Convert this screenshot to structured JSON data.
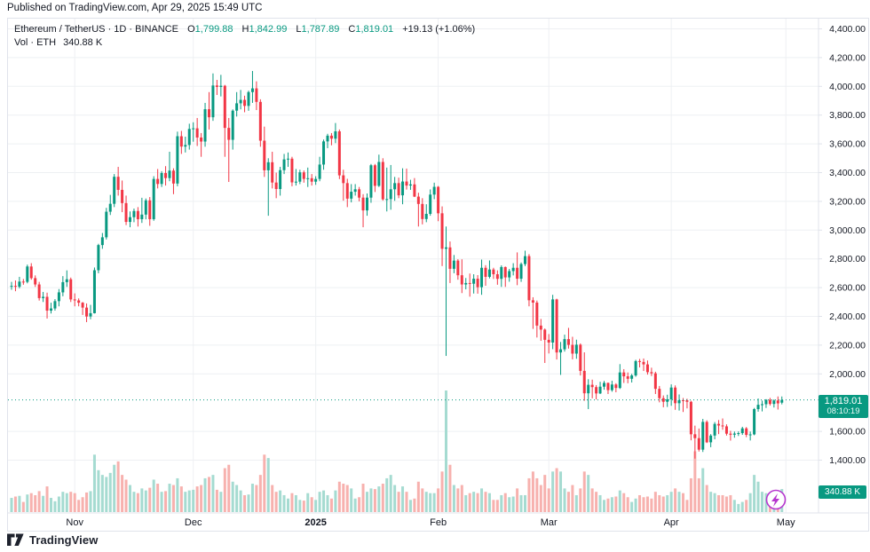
{
  "published_line": "Published on TradingView.com, Apr 29, 2025 15:49 UTC",
  "legend": {
    "series": "Ethereum / TetherUS · 1D · BINANCE",
    "ohlc": [
      {
        "k": "O",
        "v": "1,799.88"
      },
      {
        "k": "H",
        "v": "1,842.99"
      },
      {
        "k": "L",
        "v": "1,787.89"
      },
      {
        "k": "C",
        "v": "1,819.01"
      }
    ],
    "change": "+19.13 (+1.06%)",
    "vol_label": "Vol · ETH",
    "vol_value": "340.88 K"
  },
  "price_axis": {
    "ticks": [
      "4,400.00",
      "4,200.00",
      "4,000.00",
      "3,800.00",
      "3,600.00",
      "3,400.00",
      "3,200.00",
      "3,000.00",
      "2,800.00",
      "2,600.00",
      "2,400.00",
      "2,200.00",
      "2,000.00",
      "1,600.00",
      "1,400.00"
    ],
    "price_label": {
      "price": "1,819.01",
      "countdown": "08:10:19"
    },
    "volume_label": "340.88 K"
  },
  "time_axis": {
    "labels": [
      {
        "label": "Nov",
        "index": 16,
        "bold": false
      },
      {
        "label": "Dec",
        "index": 46,
        "bold": false
      },
      {
        "label": "2025",
        "index": 77,
        "bold": true
      },
      {
        "label": "Feb",
        "index": 108,
        "bold": false
      },
      {
        "label": "Mar",
        "index": 136,
        "bold": false
      },
      {
        "label": "Apr",
        "index": 167,
        "bold": false
      },
      {
        "label": "May",
        "index": 196,
        "bold": false
      }
    ]
  },
  "footer": {
    "brand": "TradingView"
  },
  "colors": {
    "up": "#089981",
    "down": "#f23645",
    "vol_up": "#a5dbd1",
    "vol_down": "#f7b1ae",
    "badge": "#089981",
    "boost": "#b636ce",
    "text": "#131722",
    "grid": "#eef0f3",
    "border": "#e0e3eb"
  },
  "chart_data": {
    "type": "candlestick",
    "title": "Ethereum / TetherUS",
    "exchange": "BINANCE",
    "interval": "1D",
    "volume_unit": "K ETH",
    "start_date": "2024-10-16",
    "end_date": "2025-04-29",
    "ylim": [
      1330,
      4470
    ],
    "grid": true,
    "last_price": 1819.01,
    "last_change": "+19.13 (+1.06%)",
    "last_volume_k": 340.88,
    "columns": [
      "open",
      "high",
      "low",
      "close",
      "volume_k"
    ],
    "ohlcv": [
      [
        2608,
        2640,
        2585,
        2612,
        210
      ],
      [
        2612,
        2650,
        2575,
        2606,
        230
      ],
      [
        2606,
        2675,
        2595,
        2642,
        240
      ],
      [
        2642,
        2660,
        2620,
        2640,
        150
      ],
      [
        2640,
        2760,
        2630,
        2747,
        260
      ],
      [
        2747,
        2770,
        2655,
        2666,
        280
      ],
      [
        2666,
        2685,
        2605,
        2622,
        250
      ],
      [
        2622,
        2640,
        2510,
        2527,
        310
      ],
      [
        2527,
        2570,
        2500,
        2536,
        240
      ],
      [
        2536,
        2565,
        2385,
        2440,
        380
      ],
      [
        2440,
        2495,
        2420,
        2455,
        210
      ],
      [
        2455,
        2520,
        2440,
        2506,
        160
      ],
      [
        2506,
        2590,
        2470,
        2567,
        230
      ],
      [
        2567,
        2680,
        2540,
        2638,
        300
      ],
      [
        2638,
        2720,
        2605,
        2658,
        280
      ],
      [
        2658,
        2670,
        2500,
        2518,
        300
      ],
      [
        2518,
        2560,
        2470,
        2511,
        280
      ],
      [
        2511,
        2525,
        2470,
        2495,
        180
      ],
      [
        2495,
        2500,
        2410,
        2461,
        220
      ],
      [
        2461,
        2490,
        2360,
        2399,
        290
      ],
      [
        2399,
        2480,
        2380,
        2422,
        310
      ],
      [
        2422,
        2740,
        2420,
        2721,
        850
      ],
      [
        2721,
        2905,
        2700,
        2896,
        620
      ],
      [
        2896,
        2980,
        2870,
        2950,
        550
      ],
      [
        2950,
        3155,
        2935,
        3128,
        520
      ],
      [
        3128,
        3245,
        3105,
        3183,
        580
      ],
      [
        3183,
        3390,
        3160,
        3371,
        700
      ],
      [
        3371,
        3440,
        3240,
        3280,
        750
      ],
      [
        3280,
        3345,
        3125,
        3188,
        550
      ],
      [
        3188,
        3240,
        3035,
        3057,
        480
      ],
      [
        3057,
        3130,
        3020,
        3090,
        400
      ],
      [
        3090,
        3150,
        3055,
        3133,
        300
      ],
      [
        3133,
        3160,
        3025,
        3076,
        280
      ],
      [
        3076,
        3225,
        3050,
        3108,
        350
      ],
      [
        3108,
        3220,
        3075,
        3207,
        320
      ],
      [
        3207,
        3230,
        3030,
        3076,
        360
      ],
      [
        3076,
        3375,
        3065,
        3356,
        480
      ],
      [
        3356,
        3425,
        3290,
        3321,
        420
      ],
      [
        3321,
        3410,
        3300,
        3397,
        300
      ],
      [
        3397,
        3445,
        3310,
        3362,
        310
      ],
      [
        3362,
        3545,
        3340,
        3414,
        420
      ],
      [
        3414,
        3430,
        3250,
        3324,
        400
      ],
      [
        3324,
        3685,
        3305,
        3653,
        500
      ],
      [
        3653,
        3690,
        3530,
        3581,
        380
      ],
      [
        3581,
        3650,
        3540,
        3592,
        300
      ],
      [
        3592,
        3740,
        3560,
        3704,
        320
      ],
      [
        3704,
        3750,
        3615,
        3708,
        330
      ],
      [
        3708,
        3780,
        3585,
        3644,
        380
      ],
      [
        3644,
        3675,
        3510,
        3616,
        400
      ],
      [
        3616,
        3885,
        3580,
        3841,
        500
      ],
      [
        3841,
        3960,
        3700,
        3785,
        520
      ],
      [
        3785,
        4090,
        3760,
        4006,
        550
      ],
      [
        4006,
        4045,
        3940,
        3996,
        330
      ],
      [
        3996,
        4080,
        3930,
        4004,
        300
      ],
      [
        4004,
        4010,
        3510,
        3711,
        650
      ],
      [
        3711,
        3780,
        3335,
        3628,
        700
      ],
      [
        3628,
        3840,
        3560,
        3831,
        450
      ],
      [
        3831,
        3960,
        3790,
        3882,
        400
      ],
      [
        3882,
        3975,
        3840,
        3906,
        320
      ],
      [
        3906,
        3935,
        3820,
        3864,
        250
      ],
      [
        3864,
        3970,
        3830,
        3960,
        260
      ],
      [
        3960,
        4107,
        3885,
        3986,
        420
      ],
      [
        3986,
        4035,
        3835,
        3892,
        400
      ],
      [
        3892,
        3910,
        3580,
        3622,
        550
      ],
      [
        3622,
        3720,
        3370,
        3416,
        850
      ],
      [
        3416,
        3500,
        3100,
        3472,
        800
      ],
      [
        3472,
        3545,
        3290,
        3331,
        400
      ],
      [
        3331,
        3400,
        3222,
        3286,
        300
      ],
      [
        3286,
        3440,
        3240,
        3417,
        320
      ],
      [
        3417,
        3530,
        3390,
        3492,
        250
      ],
      [
        3492,
        3540,
        3440,
        3497,
        200
      ],
      [
        3497,
        3510,
        3305,
        3332,
        280
      ],
      [
        3332,
        3425,
        3310,
        3337,
        250
      ],
      [
        3337,
        3420,
        3320,
        3402,
        180
      ],
      [
        3402,
        3415,
        3330,
        3356,
        170
      ],
      [
        3356,
        3435,
        3300,
        3361,
        280
      ],
      [
        3361,
        3390,
        3310,
        3337,
        220
      ],
      [
        3337,
        3375,
        3315,
        3356,
        180
      ],
      [
        3356,
        3510,
        3340,
        3456,
        300
      ],
      [
        3456,
        3630,
        3420,
        3617,
        320
      ],
      [
        3617,
        3670,
        3570,
        3657,
        250
      ],
      [
        3657,
        3675,
        3590,
        3636,
        200
      ],
      [
        3636,
        3745,
        3605,
        3687,
        320
      ],
      [
        3687,
        3700,
        3355,
        3381,
        450
      ],
      [
        3381,
        3420,
        3205,
        3327,
        420
      ],
      [
        3327,
        3357,
        3160,
        3219,
        400
      ],
      [
        3219,
        3320,
        3193,
        3267,
        350
      ],
      [
        3267,
        3320,
        3240,
        3284,
        200
      ],
      [
        3284,
        3300,
        3200,
        3226,
        220
      ],
      [
        3226,
        3250,
        3020,
        3137,
        420
      ],
      [
        3137,
        3255,
        3100,
        3226,
        300
      ],
      [
        3226,
        3460,
        3190,
        3451,
        350
      ],
      [
        3451,
        3460,
        3265,
        3308,
        340
      ],
      [
        3308,
        3525,
        3300,
        3474,
        380
      ],
      [
        3474,
        3500,
        3205,
        3214,
        420
      ],
      [
        3214,
        3435,
        3130,
        3216,
        500
      ],
      [
        3216,
        3453,
        3142,
        3284,
        550
      ],
      [
        3284,
        3370,
        3204,
        3327,
        400
      ],
      [
        3327,
        3365,
        3222,
        3242,
        300
      ],
      [
        3242,
        3430,
        3180,
        3338,
        380
      ],
      [
        3338,
        3428,
        3282,
        3310,
        300
      ],
      [
        3310,
        3350,
        3280,
        3318,
        180
      ],
      [
        3318,
        3362,
        3230,
        3233,
        200
      ],
      [
        3233,
        3260,
        3025,
        3182,
        450
      ],
      [
        3182,
        3222,
        3040,
        3077,
        350
      ],
      [
        3077,
        3180,
        3055,
        3113,
        300
      ],
      [
        3113,
        3283,
        3100,
        3247,
        280
      ],
      [
        3247,
        3330,
        3215,
        3301,
        280
      ],
      [
        3301,
        3307,
        3062,
        3117,
        350
      ],
      [
        3117,
        3165,
        2750,
        2870,
        600
      ],
      [
        2870,
        3025,
        2125,
        2880,
        1800
      ],
      [
        2880,
        2921,
        2632,
        2731,
        700
      ],
      [
        2731,
        2827,
        2700,
        2788,
        400
      ],
      [
        2788,
        2798,
        2655,
        2686,
        350
      ],
      [
        2686,
        2797,
        2562,
        2622,
        400
      ],
      [
        2622,
        2667,
        2588,
        2632,
        250
      ],
      [
        2632,
        2698,
        2537,
        2627,
        280
      ],
      [
        2627,
        2693,
        2559,
        2662,
        300
      ],
      [
        2662,
        2687,
        2558,
        2603,
        280
      ],
      [
        2603,
        2795,
        2550,
        2738,
        350
      ],
      [
        2738,
        2756,
        2613,
        2675,
        300
      ],
      [
        2675,
        2789,
        2664,
        2726,
        280
      ],
      [
        2726,
        2738,
        2660,
        2693,
        180
      ],
      [
        2693,
        2720,
        2620,
        2661,
        180
      ],
      [
        2661,
        2755,
        2605,
        2743,
        250
      ],
      [
        2743,
        2747,
        2605,
        2671,
        280
      ],
      [
        2671,
        2730,
        2641,
        2715,
        220
      ],
      [
        2715,
        2770,
        2685,
        2738,
        230
      ],
      [
        2738,
        2845,
        2617,
        2662,
        350
      ],
      [
        2662,
        2775,
        2640,
        2764,
        250
      ],
      [
        2764,
        2857,
        2750,
        2819,
        250
      ],
      [
        2819,
        2833,
        2470,
        2512,
        500
      ],
      [
        2512,
        2533,
        2313,
        2496,
        600
      ],
      [
        2496,
        2510,
        2253,
        2336,
        500
      ],
      [
        2336,
        2382,
        2230,
        2308,
        400
      ],
      [
        2308,
        2316,
        2076,
        2237,
        550
      ],
      [
        2237,
        2277,
        2142,
        2218,
        350
      ],
      [
        2218,
        2550,
        2172,
        2518,
        600
      ],
      [
        2518,
        2523,
        2100,
        2149,
        650
      ],
      [
        2149,
        2222,
        1993,
        2171,
        600
      ],
      [
        2171,
        2273,
        2155,
        2242,
        350
      ],
      [
        2242,
        2320,
        2176,
        2202,
        300
      ],
      [
        2202,
        2258,
        2101,
        2141,
        400
      ],
      [
        2141,
        2238,
        2105,
        2203,
        250
      ],
      [
        2203,
        2212,
        1989,
        2021,
        350
      ],
      [
        2021,
        2150,
        1813,
        1865,
        600
      ],
      [
        1865,
        1963,
        1755,
        1924,
        550
      ],
      [
        1924,
        1960,
        1830,
        1908,
        350
      ],
      [
        1908,
        1922,
        1822,
        1864,
        300
      ],
      [
        1864,
        1945,
        1860,
        1911,
        250
      ],
      [
        1911,
        1951,
        1890,
        1937,
        180
      ],
      [
        1937,
        1940,
        1860,
        1887,
        200
      ],
      [
        1887,
        1952,
        1876,
        1926,
        220
      ],
      [
        1926,
        1935,
        1872,
        1902,
        230
      ],
      [
        1902,
        2068,
        1895,
        2010,
        320
      ],
      [
        2010,
        2033,
        1937,
        1983,
        280
      ],
      [
        1983,
        2010,
        1935,
        1966,
        220
      ],
      [
        1966,
        2000,
        1940,
        1989,
        150
      ],
      [
        1989,
        2098,
        1980,
        2089,
        200
      ],
      [
        2089,
        2104,
        2045,
        2083,
        250
      ],
      [
        2083,
        2107,
        2020,
        2066,
        220
      ],
      [
        2066,
        2093,
        1995,
        2012,
        230
      ],
      [
        2012,
        2043,
        1985,
        2004,
        200
      ],
      [
        2004,
        2015,
        1860,
        1896,
        300
      ],
      [
        1896,
        1916,
        1802,
        1831,
        250
      ],
      [
        1831,
        1850,
        1768,
        1806,
        230
      ],
      [
        1806,
        1855,
        1770,
        1823,
        250
      ],
      [
        1823,
        1927,
        1778,
        1905,
        300
      ],
      [
        1905,
        1920,
        1750,
        1796,
        350
      ],
      [
        1796,
        1857,
        1745,
        1817,
        300
      ],
      [
        1817,
        1832,
        1735,
        1816,
        280
      ],
      [
        1816,
        1827,
        1760,
        1806,
        180
      ],
      [
        1806,
        1813,
        1538,
        1580,
        500
      ],
      [
        1580,
        1640,
        1411,
        1553,
        900
      ],
      [
        1553,
        1620,
        1460,
        1473,
        500
      ],
      [
        1473,
        1687,
        1457,
        1666,
        650
      ],
      [
        1666,
        1677,
        1519,
        1524,
        400
      ],
      [
        1524,
        1581,
        1490,
        1571,
        300
      ],
      [
        1571,
        1665,
        1545,
        1652,
        280
      ],
      [
        1652,
        1679,
        1581,
        1641,
        250
      ],
      [
        1641,
        1690,
        1611,
        1635,
        250
      ],
      [
        1635,
        1649,
        1571,
        1584,
        230
      ],
      [
        1584,
        1604,
        1536,
        1577,
        250
      ],
      [
        1577,
        1599,
        1556,
        1585,
        180
      ],
      [
        1585,
        1600,
        1568,
        1588,
        120
      ],
      [
        1588,
        1632,
        1576,
        1621,
        150
      ],
      [
        1621,
        1630,
        1560,
        1576,
        180
      ],
      [
        1576,
        1599,
        1537,
        1579,
        280
      ],
      [
        1579,
        1763,
        1573,
        1755,
        550
      ],
      [
        1755,
        1829,
        1737,
        1785,
        450
      ],
      [
        1785,
        1814,
        1739,
        1789,
        300
      ],
      [
        1789,
        1824,
        1763,
        1820,
        280
      ],
      [
        1820,
        1833,
        1780,
        1791,
        180
      ],
      [
        1791,
        1823,
        1766,
        1815,
        150
      ],
      [
        1815,
        1843,
        1752,
        1795,
        320
      ],
      [
        1799.88,
        1842.99,
        1787.89,
        1819.01,
        341
      ]
    ]
  }
}
